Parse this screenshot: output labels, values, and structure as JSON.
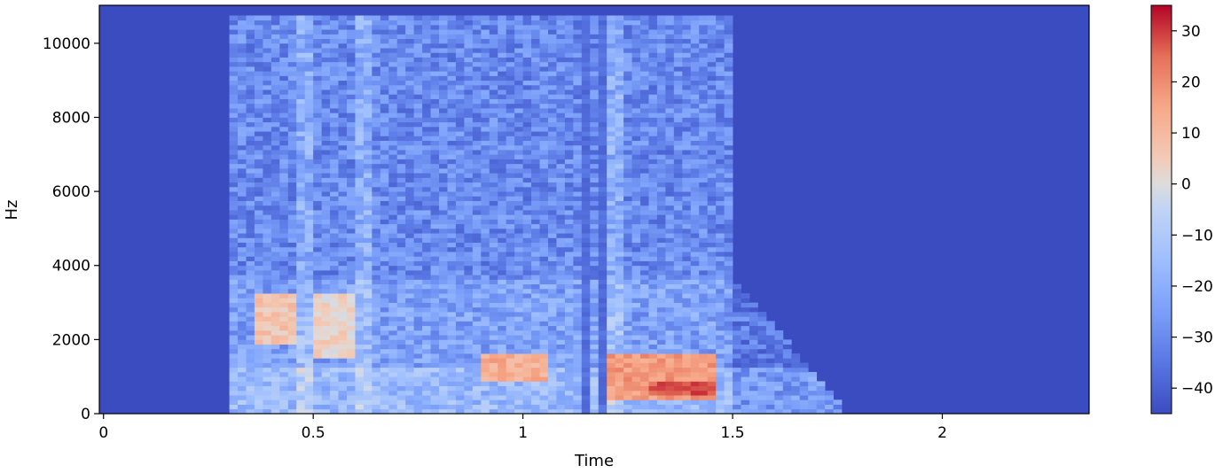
{
  "chart_data": {
    "type": "heatmap",
    "title": "",
    "xlabel": "Time",
    "ylabel": "Hz",
    "xlim": [
      -0.01,
      2.35
    ],
    "ylim": [
      0,
      11025
    ],
    "x_ticks": [
      0,
      0.5,
      1,
      1.5,
      2
    ],
    "x_tick_labels": [
      "0",
      "0.5",
      "1",
      "1.5",
      "2"
    ],
    "y_ticks": [
      0,
      2000,
      4000,
      6000,
      8000,
      10000
    ],
    "y_tick_labels": [
      "0",
      "2000",
      "4000",
      "6000",
      "8000",
      "10000"
    ],
    "colorbar": {
      "range": [
        -45,
        35
      ],
      "ticks": [
        -40,
        -30,
        -20,
        -10,
        0,
        10,
        20,
        30
      ],
      "tick_labels": [
        "−40",
        "−30",
        "−20",
        "−10",
        "0",
        "10",
        "20",
        "30"
      ],
      "colormap": "coolwarm"
    },
    "speech_segment_sec": [
      0.3,
      1.75
    ],
    "strong_bands_hz": [
      {
        "x": [
          0.35,
          0.45
        ],
        "y": [
          1800,
          3200
        ],
        "level_db": 12
      },
      {
        "x": [
          0.5,
          0.6
        ],
        "y": [
          1500,
          3200
        ],
        "level_db": 8
      },
      {
        "x": [
          0.9,
          1.05
        ],
        "y": [
          800,
          1600
        ],
        "level_db": 18
      },
      {
        "x": [
          1.2,
          1.45
        ],
        "y": [
          300,
          1600
        ],
        "level_db": 22
      },
      {
        "x": [
          1.3,
          1.45
        ],
        "y": [
          500,
          800
        ],
        "level_db": 32
      }
    ],
    "floor_db": -44
  }
}
